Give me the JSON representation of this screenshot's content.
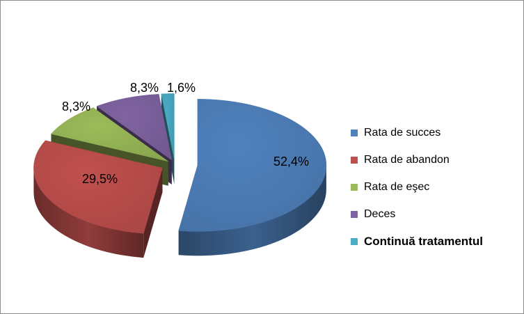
{
  "chart_data": {
    "type": "pie",
    "title": "",
    "categories": [
      "Rata de succes",
      "Rata de abandon",
      "Rata de eşec",
      "Deces",
      "Continuă tratamentul"
    ],
    "values": [
      52.4,
      29.5,
      8.3,
      8.3,
      1.6
    ],
    "data_labels": [
      "52,4%",
      "29,5%",
      "8,3%",
      "8,3%",
      "1,6%"
    ],
    "colors": [
      "#4F81BD",
      "#C0504D",
      "#9BBB59",
      "#8064A2",
      "#4BACC6"
    ],
    "style": "3d-exploded",
    "legend": "right"
  }
}
